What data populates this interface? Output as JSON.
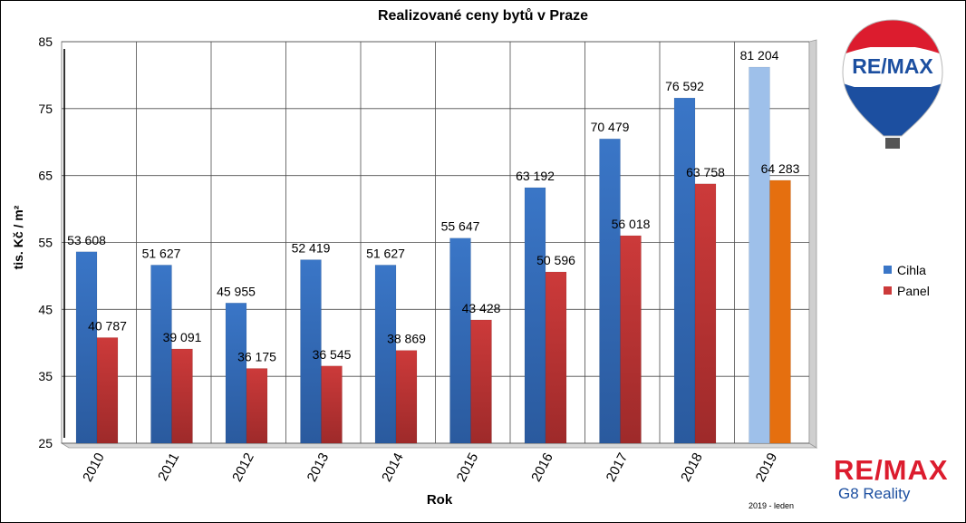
{
  "chart_data": {
    "type": "bar",
    "title": "Realizované ceny bytů v Praze",
    "xlabel": "Rok",
    "ylabel": "tis. Kč / m²",
    "ylim": [
      25,
      85
    ],
    "yticks": [
      25,
      35,
      45,
      55,
      65,
      75,
      85
    ],
    "categories": [
      "2010",
      "2011",
      "2012",
      "2013",
      "2014",
      "2015",
      "2016",
      "2017",
      "2018",
      "2019"
    ],
    "series": [
      {
        "name": "Cihla",
        "values": [
          53.608,
          51.627,
          45.955,
          52.419,
          51.627,
          55.647,
          63.192,
          70.479,
          76.592,
          81.204
        ],
        "labels": [
          "53 608",
          "51 627",
          "45 955",
          "52 419",
          "51 627",
          "55 647",
          "63 192",
          "70 479",
          "76 592",
          "81 204"
        ],
        "color": "#3a76c7",
        "highlight_color": "#9ec0ea"
      },
      {
        "name": "Panel",
        "values": [
          40.787,
          39.091,
          36.175,
          36.545,
          38.869,
          43.428,
          50.596,
          56.018,
          63.758,
          64.283
        ],
        "labels": [
          "40 787",
          "39 091",
          "36 175",
          "36 545",
          "38 869",
          "43 428",
          "50 596",
          "56 018",
          "63 758",
          "64 283"
        ],
        "color": "#cc3a3a",
        "highlight_color": "#e56f0f"
      }
    ],
    "grid": true,
    "legend_position": "right"
  },
  "logos": {
    "balloon_text": "RE/MAX",
    "brand_name": "RE/MAX",
    "brand_sub": "G8 Reality"
  },
  "note": "2019 - leden"
}
